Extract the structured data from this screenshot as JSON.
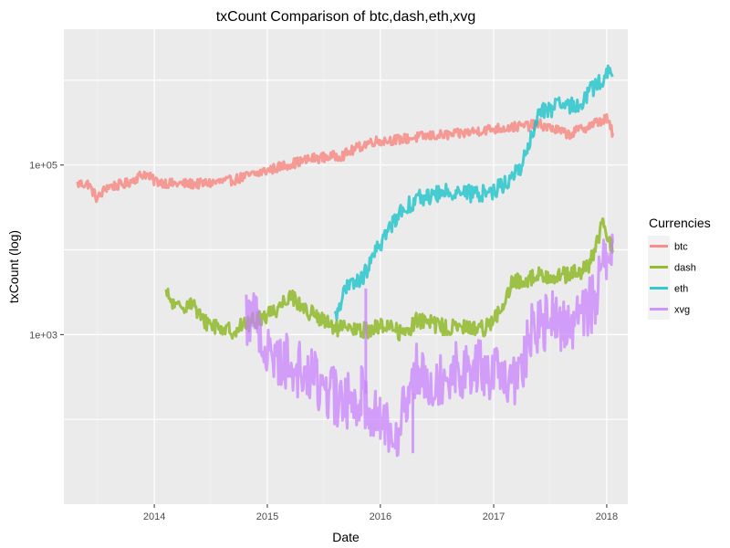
{
  "chart_data": {
    "type": "line",
    "title": "txCount  Comparison of  btc,dash,eth,xvg",
    "xlabel": "Date",
    "ylabel": "txCount (log)",
    "y_scale": "log10",
    "xlim": [
      "2013-03-15",
      "2018-03-10"
    ],
    "ylim": [
      10,
      4000000
    ],
    "x_ticks": [
      "2014",
      "2015",
      "2016",
      "2017",
      "2018"
    ],
    "y_ticks": [
      "1e+03",
      "1e+05"
    ],
    "grid": true,
    "legend": {
      "title": "Currencies",
      "position": "right"
    },
    "series": [
      {
        "name": "btc",
        "color": "#F8766D",
        "points": [
          [
            "2013-04-28",
            60000
          ],
          [
            "2013-06-01",
            60000
          ],
          [
            "2013-07-01",
            40000
          ],
          [
            "2013-08-01",
            55000
          ],
          [
            "2013-10-01",
            60000
          ],
          [
            "2013-12-01",
            80000
          ],
          [
            "2014-01-01",
            65000
          ],
          [
            "2014-03-01",
            60000
          ],
          [
            "2014-06-01",
            60000
          ],
          [
            "2014-09-01",
            65000
          ],
          [
            "2014-12-01",
            80000
          ],
          [
            "2015-03-01",
            100000
          ],
          [
            "2015-06-01",
            120000
          ],
          [
            "2015-09-01",
            130000
          ],
          [
            "2015-12-01",
            190000
          ],
          [
            "2016-03-01",
            200000
          ],
          [
            "2016-06-01",
            220000
          ],
          [
            "2016-09-01",
            230000
          ],
          [
            "2016-12-01",
            260000
          ],
          [
            "2017-03-01",
            280000
          ],
          [
            "2017-06-01",
            300000
          ],
          [
            "2017-09-01",
            230000
          ],
          [
            "2017-12-01",
            320000
          ],
          [
            "2018-01-01",
            350000
          ],
          [
            "2018-01-20",
            240000
          ]
        ]
      },
      {
        "name": "dash",
        "color": "#7CAE00",
        "points": [
          [
            "2014-02-08",
            3000
          ],
          [
            "2014-03-15",
            2000
          ],
          [
            "2014-05-01",
            2500
          ],
          [
            "2014-06-01",
            1500
          ],
          [
            "2014-09-01",
            1100
          ],
          [
            "2014-12-01",
            1500
          ],
          [
            "2015-02-01",
            2000
          ],
          [
            "2015-03-15",
            3000
          ],
          [
            "2015-05-01",
            2000
          ],
          [
            "2015-08-01",
            1200
          ],
          [
            "2015-11-01",
            1100
          ],
          [
            "2016-02-01",
            1300
          ],
          [
            "2016-03-15",
            1000
          ],
          [
            "2016-05-01",
            1500
          ],
          [
            "2016-08-01",
            1200
          ],
          [
            "2016-12-01",
            1200
          ],
          [
            "2017-02-01",
            2000
          ],
          [
            "2017-03-01",
            4000
          ],
          [
            "2017-06-01",
            5000
          ],
          [
            "2017-09-01",
            5000
          ],
          [
            "2017-11-01",
            6000
          ],
          [
            "2017-12-20",
            20000
          ],
          [
            "2018-01-20",
            10000
          ]
        ]
      },
      {
        "name": "eth",
        "color": "#00BFC4",
        "points": [
          [
            "2015-08-07",
            1500
          ],
          [
            "2015-09-01",
            3000
          ],
          [
            "2015-10-01",
            4000
          ],
          [
            "2015-11-01",
            4500
          ],
          [
            "2015-12-01",
            7000
          ],
          [
            "2016-01-01",
            12000
          ],
          [
            "2016-02-01",
            18000
          ],
          [
            "2016-03-01",
            28000
          ],
          [
            "2016-05-01",
            40000
          ],
          [
            "2016-07-01",
            45000
          ],
          [
            "2016-09-01",
            50000
          ],
          [
            "2016-11-01",
            45000
          ],
          [
            "2017-01-01",
            50000
          ],
          [
            "2017-03-01",
            70000
          ],
          [
            "2017-04-01",
            100000
          ],
          [
            "2017-05-01",
            200000
          ],
          [
            "2017-06-01",
            450000
          ],
          [
            "2017-07-01",
            450000
          ],
          [
            "2017-08-01",
            500000
          ],
          [
            "2017-09-01",
            500000
          ],
          [
            "2017-10-01",
            500000
          ],
          [
            "2017-11-01",
            700000
          ],
          [
            "2017-12-01",
            900000
          ],
          [
            "2018-01-05",
            1200000
          ],
          [
            "2018-01-20",
            1100000
          ]
        ]
      },
      {
        "name": "xvg",
        "color": "#C77CFF",
        "points": [
          [
            "2014-10-25",
            1500
          ],
          [
            "2014-11-15",
            2000
          ],
          [
            "2015-01-01",
            600
          ],
          [
            "2015-03-01",
            500
          ],
          [
            "2015-06-01",
            300
          ],
          [
            "2015-09-01",
            150
          ],
          [
            "2015-11-01",
            200
          ],
          [
            "2016-01-01",
            100
          ],
          [
            "2016-03-01",
            80
          ],
          [
            "2016-05-01",
            400
          ],
          [
            "2016-07-01",
            300
          ],
          [
            "2016-09-01",
            400
          ],
          [
            "2016-11-01",
            400
          ],
          [
            "2017-01-01",
            350
          ],
          [
            "2017-03-01",
            250
          ],
          [
            "2017-04-01",
            400
          ],
          [
            "2017-05-01",
            1000
          ],
          [
            "2017-07-01",
            1500
          ],
          [
            "2017-09-01",
            1300
          ],
          [
            "2017-11-01",
            2000
          ],
          [
            "2017-12-01",
            3000
          ],
          [
            "2018-01-01",
            10000
          ],
          [
            "2018-01-20",
            12000
          ]
        ],
        "spikes": [
          [
            "2015-11-15",
            3500
          ],
          [
            "2016-04-15",
            40
          ]
        ]
      }
    ]
  }
}
